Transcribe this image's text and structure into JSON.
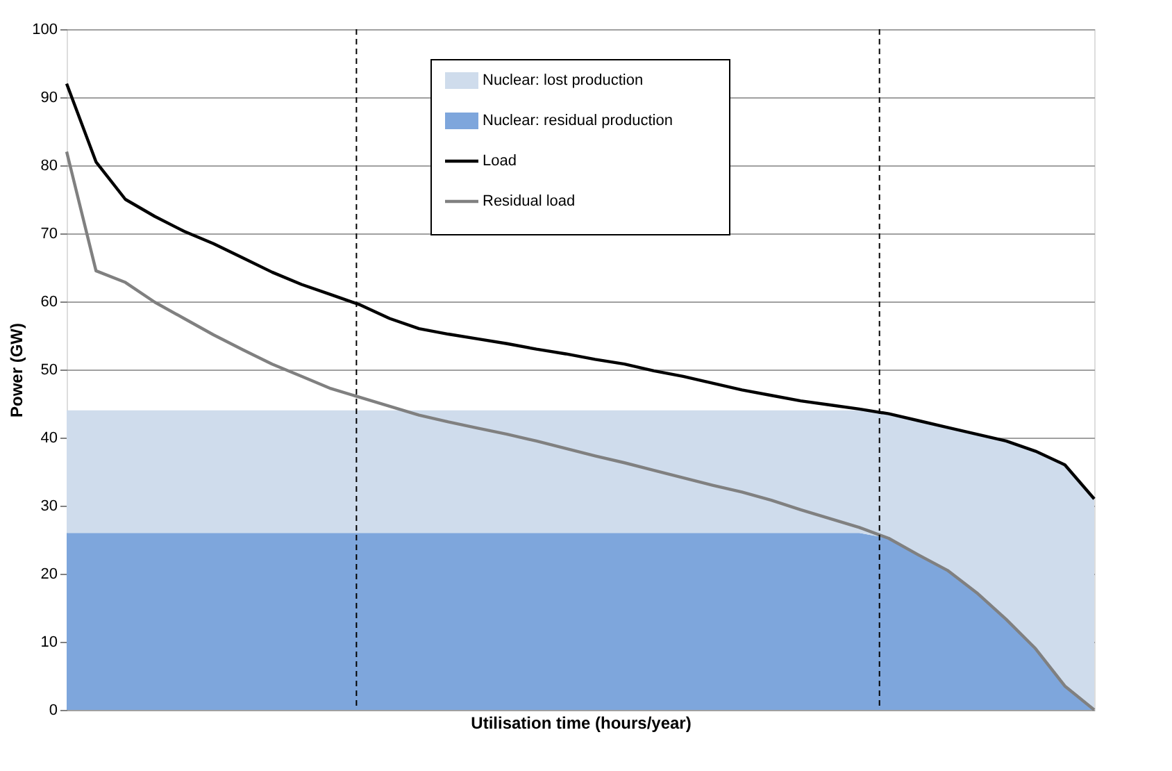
{
  "chart_data": {
    "type": "area",
    "xlabel": "Utilisation time (hours/year)",
    "ylabel": "Power (GW)",
    "categories": [
      null,
      null,
      null,
      null,
      null,
      null,
      null,
      null,
      null,
      null,
      null,
      null,
      null,
      null,
      null,
      null,
      null,
      null,
      null,
      null,
      null,
      null,
      null,
      null,
      null,
      null,
      null,
      null,
      null,
      null,
      null,
      null,
      null,
      null,
      null,
      null
    ],
    "ylim": [
      0,
      100
    ],
    "yticks": [
      0,
      10,
      20,
      30,
      40,
      50,
      60,
      70,
      80,
      90,
      100
    ],
    "tick_labels": "y",
    "grid": "y",
    "legend": "top",
    "stacked": true,
    "series": [
      {
        "name": "Nuclear: residual production",
        "color": "#7ea6dc",
        "values": [
          26,
          26,
          26,
          26,
          26,
          26,
          26,
          26,
          26,
          26,
          26,
          26,
          26,
          26,
          26,
          26,
          26,
          26,
          26,
          26,
          26,
          26,
          26,
          26,
          26,
          26,
          26,
          26,
          25.2,
          22.8,
          20.5,
          17.2,
          13.3,
          9,
          3.5,
          0
        ]
      },
      {
        "name": "Nuclear: lost production",
        "color": "#cfdcec",
        "values": [
          18,
          18,
          18,
          18,
          18,
          18,
          18,
          18,
          18,
          18,
          18,
          18,
          18,
          18,
          18,
          18,
          18,
          18,
          18,
          18,
          18,
          18,
          18,
          18,
          18,
          18,
          18,
          18,
          18.3,
          19.7,
          21,
          23.3,
          26.2,
          29,
          32.5,
          31
        ]
      },
      {
        "name": "Load",
        "type": "line",
        "color": "#000000",
        "values": [
          92,
          80.5,
          75,
          72.5,
          70.3,
          68.5,
          66.4,
          64.3,
          62.5,
          61,
          59.5,
          57.5,
          56,
          55.2,
          54.5,
          53.8,
          53,
          52.3,
          51.5,
          50.8,
          49.8,
          49,
          48,
          47,
          46.2,
          45.4,
          44.8,
          44.2,
          43.5,
          42.5,
          41.5,
          40.5,
          39.5,
          38,
          36,
          31
        ]
      },
      {
        "name": "Residual load",
        "type": "line",
        "color": "#808080",
        "values": [
          82,
          64.5,
          62.8,
          59.9,
          57.5,
          55.1,
          52.9,
          50.8,
          49,
          47.2,
          45.9,
          44.6,
          43.3,
          42.3,
          41.4,
          40.5,
          39.5,
          38.4,
          37.3,
          36.3,
          35.2,
          34.1,
          33,
          32,
          30.8,
          29.4,
          28.1,
          26.8,
          25.2,
          22.8,
          20.5,
          17.2,
          13.3,
          9,
          3.5,
          0
        ]
      }
    ]
  }
}
